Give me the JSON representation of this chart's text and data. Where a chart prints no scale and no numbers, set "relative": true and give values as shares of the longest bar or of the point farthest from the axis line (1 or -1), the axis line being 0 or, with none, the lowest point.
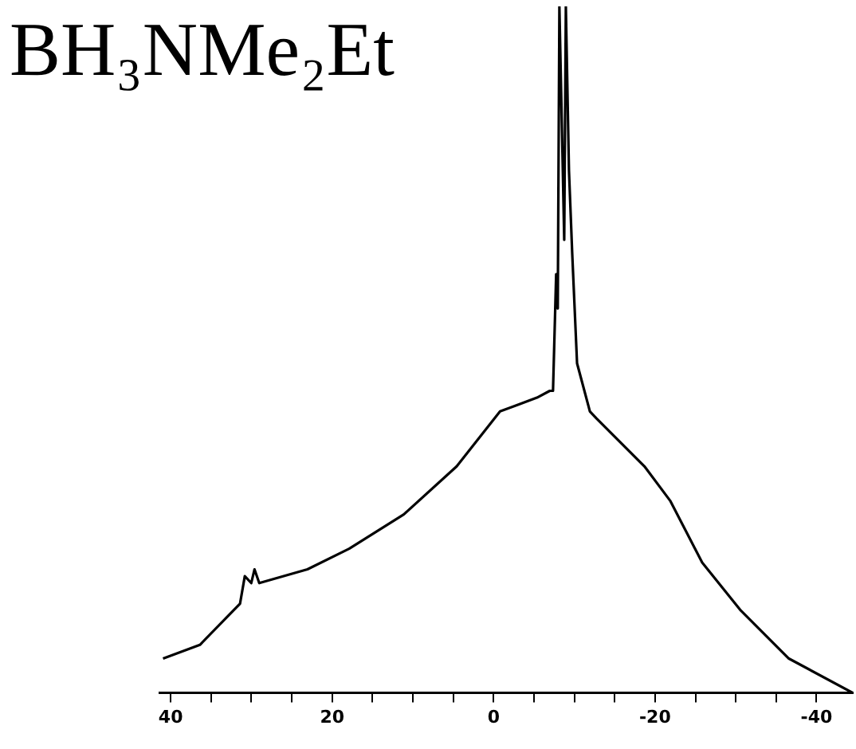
{
  "chart_data": {
    "type": "line",
    "title": "BH₃NMe₂Et",
    "relative": true,
    "x": [
      40.95,
      36.38,
      31.41,
      30.82,
      30.02,
      29.62,
      29.03,
      23.06,
      17.89,
      11.13,
      4.57,
      -0.8,
      -5.37,
      -6.96,
      -7.36,
      -7.75,
      -7.95,
      -8.15,
      -8.75,
      -8.95,
      -9.34,
      -9.74,
      -10.34,
      -11.93,
      -12.72,
      -18.69,
      -21.87,
      -25.84,
      -30.62,
      -36.58,
      -44.5
    ],
    "series": [
      {
        "color": "#000000",
        "values": [
          0.05,
          0.07,
          0.13,
          0.17,
          0.16,
          0.18,
          0.16,
          0.18,
          0.21,
          0.26,
          0.33,
          0.41,
          0.43,
          0.44,
          0.44,
          0.61,
          0.56,
          1,
          0.66,
          1,
          0.76,
          0.64,
          0.48,
          0.41,
          0.4,
          0.33,
          0.28,
          0.19,
          0.12,
          0.05,
          0
        ]
      }
    ],
    "xlim": [
      41.4,
      -44.5
    ],
    "xticks": [
      40,
      {
        "value": 35,
        "label": null
      },
      {
        "value": 30,
        "label": null
      },
      {
        "value": 25,
        "label": null
      },
      20,
      {
        "value": 15,
        "label": null
      },
      {
        "value": 10,
        "label": null
      },
      {
        "value": 5,
        "label": null
      },
      0,
      {
        "value": -5,
        "label": null
      },
      {
        "value": -10,
        "label": null
      },
      {
        "value": -15,
        "label": null
      },
      -20,
      {
        "value": -25,
        "label": null
      },
      {
        "value": -30,
        "label": null
      },
      {
        "value": -35,
        "label": null
      },
      -40
    ],
    "tick_labels": "x",
    "grid": false,
    "legend": false,
    "marker": "none",
    "line_style": "solid"
  }
}
